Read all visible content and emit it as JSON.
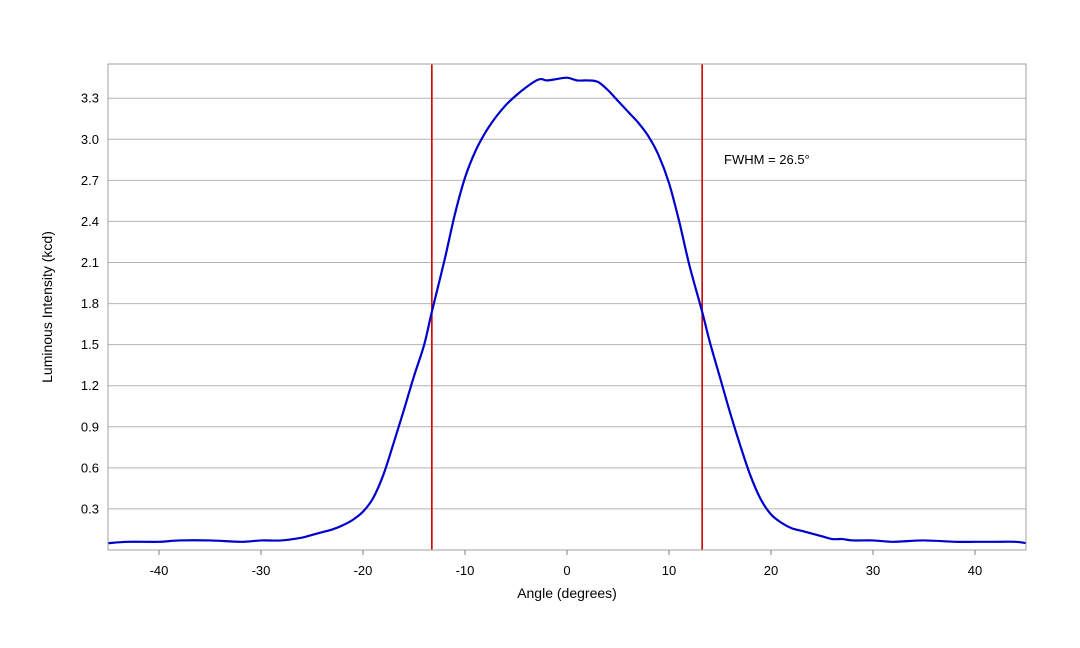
{
  "chart_data": {
    "type": "line",
    "title": "",
    "xlabel": "Angle (degrees)",
    "ylabel": "Luminous Intensity (kcd)",
    "xlim": [
      -45,
      45
    ],
    "ylim": [
      0,
      3.55
    ],
    "xticks": [
      -40,
      -30,
      -20,
      -10,
      0,
      10,
      20,
      30,
      40
    ],
    "xtick_labels": [
      "-40",
      "-30",
      "-20",
      "-10",
      "0",
      "10",
      "20",
      "30",
      "40"
    ],
    "yticks": [
      0.3,
      0.6,
      0.9,
      1.2,
      1.5,
      1.8,
      2.1,
      2.4,
      2.7,
      3.0,
      3.3
    ],
    "ytick_labels": [
      "0.3",
      "0.6",
      "0.9",
      "1.2",
      "1.5",
      "1.8",
      "2.1",
      "2.4",
      "2.7",
      "3.0",
      "3.3"
    ],
    "grid": "horizontal",
    "legend": "none",
    "series": [
      {
        "color": "#0000cc",
        "x": [
          -45,
          -43,
          -40,
          -38,
          -35,
          -32,
          -30,
          -28,
          -26,
          -25,
          -24,
          -23,
          -22,
          -21,
          -20,
          -19,
          -18,
          -17,
          -16,
          -15,
          -14,
          -13.25,
          -12,
          -11,
          -10,
          -9,
          -8,
          -7,
          -6,
          -5,
          -4,
          -3,
          -2.5,
          -2,
          -1,
          0,
          1,
          2,
          3,
          4,
          5,
          6,
          7,
          8,
          9,
          10,
          11,
          12,
          13.25,
          14,
          15,
          16,
          17,
          18,
          19,
          20,
          21,
          22,
          23,
          24,
          25,
          26,
          27,
          28,
          30,
          32,
          35,
          38,
          40,
          42,
          44,
          45
        ],
        "y": [
          0.05,
          0.06,
          0.06,
          0.07,
          0.07,
          0.06,
          0.07,
          0.07,
          0.09,
          0.11,
          0.13,
          0.15,
          0.18,
          0.22,
          0.28,
          0.38,
          0.55,
          0.78,
          1.02,
          1.27,
          1.5,
          1.74,
          2.12,
          2.45,
          2.72,
          2.91,
          3.05,
          3.16,
          3.25,
          3.32,
          3.38,
          3.43,
          3.44,
          3.43,
          3.44,
          3.45,
          3.43,
          3.43,
          3.42,
          3.36,
          3.28,
          3.2,
          3.12,
          3.02,
          2.88,
          2.68,
          2.4,
          2.08,
          1.74,
          1.52,
          1.26,
          1.0,
          0.76,
          0.54,
          0.37,
          0.26,
          0.2,
          0.16,
          0.14,
          0.12,
          0.1,
          0.08,
          0.08,
          0.07,
          0.07,
          0.06,
          0.07,
          0.06,
          0.06,
          0.06,
          0.06,
          0.05
        ]
      }
    ],
    "vlines": [
      {
        "x": -13.25,
        "color": "#cc0000"
      },
      {
        "x": 13.25,
        "color": "#cc0000"
      }
    ],
    "annotations": [
      {
        "text": "FWHM = 26.5°",
        "x": 15,
        "y": 2.82
      }
    ]
  }
}
